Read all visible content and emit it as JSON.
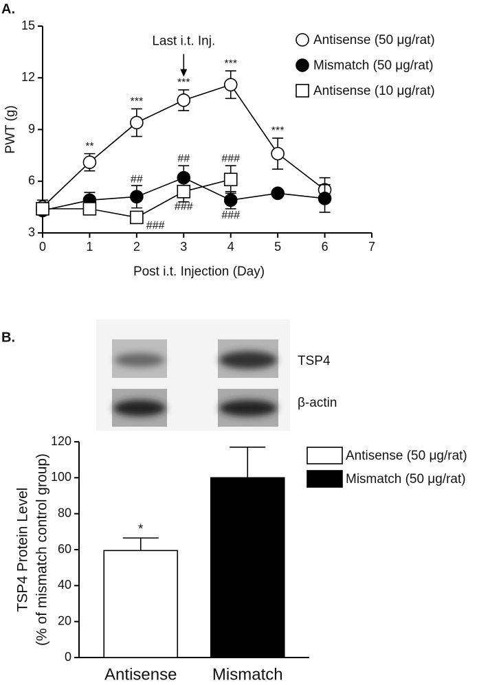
{
  "chart_data": [
    {
      "type": "line",
      "panel_label": "A.",
      "xlabel": "Post i.t. Injection (Day)",
      "ylabel": "PWT (g)",
      "x": [
        0,
        1,
        2,
        3,
        4,
        5,
        6
      ],
      "xlim": [
        0,
        7
      ],
      "xticks": [
        0,
        1,
        2,
        3,
        4,
        5,
        6,
        7
      ],
      "ylim": [
        3,
        15
      ],
      "yticks": [
        3,
        6,
        9,
        12,
        15
      ],
      "legend": "upper right",
      "series": [
        {
          "name": "Antisense (50 μg/rat)",
          "color": "#000000",
          "marker": "circle",
          "fill": "#ffffff",
          "values": [
            4.5,
            7.1,
            9.4,
            10.7,
            11.6,
            7.6,
            5.5
          ],
          "errors": [
            0.4,
            0.5,
            0.8,
            0.6,
            0.8,
            0.9,
            0.7
          ]
        },
        {
          "name": "Mismatch (50 μg/rat)",
          "color": "#000000",
          "marker": "circle",
          "fill": "#000000",
          "values": [
            4.3,
            4.9,
            5.1,
            6.2,
            4.9,
            5.3,
            5.0
          ],
          "errors": [
            0.2,
            0.45,
            0.65,
            0.7,
            0.5,
            0.1,
            0.8
          ]
        },
        {
          "name": "Antisense (10 μg/rat)",
          "color": "#000000",
          "marker": "square",
          "fill": "#ffffff",
          "values": [
            4.4,
            4.4,
            3.9,
            5.4,
            6.1,
            null,
            null
          ],
          "errors": [
            0.3,
            0.2,
            0.2,
            0.6,
            0.8,
            null,
            null
          ]
        }
      ],
      "annotations": [
        {
          "text": "Last i.t. Inj.",
          "x": 3,
          "y": 14.1,
          "arrow": true
        },
        {
          "text": "**",
          "x": 1,
          "y": 8.0
        },
        {
          "text": "***",
          "x": 2,
          "y": 10.6
        },
        {
          "text": "***",
          "x": 3,
          "y": 11.7
        },
        {
          "text": "***",
          "x": 4,
          "y": 12.8
        },
        {
          "text": "***",
          "x": 5,
          "y": 8.9
        },
        {
          "text": "##",
          "x": 2,
          "y": 6.1
        },
        {
          "text": "##",
          "x": 3,
          "y": 7.3
        },
        {
          "text": "###",
          "x": 4,
          "y": 7.3
        },
        {
          "text": "###",
          "x": 3,
          "y": 4.5
        },
        {
          "text": "###",
          "x": 4,
          "y": 4.0
        },
        {
          "text": "###",
          "x": 2.4,
          "y": 3.4
        }
      ]
    },
    {
      "type": "bar",
      "panel_label": "B.",
      "blot_labels": [
        "TSP4",
        "β-actin"
      ],
      "ylabel": [
        "TSP4 Protein Level",
        "(% of mismatch control group)"
      ],
      "categories": [
        "Antisense",
        "Mismatch"
      ],
      "values": [
        59.5,
        100
      ],
      "errors": [
        7,
        17
      ],
      "colors": [
        "#ffffff",
        "#000000"
      ],
      "legend": [
        "Antisense (50 μg/rat)",
        "Mismatch (50 μg/rat)"
      ],
      "ylim": [
        0,
        120
      ],
      "yticks": [
        0,
        20,
        40,
        60,
        80,
        100,
        120
      ],
      "annotations": [
        {
          "text": "*",
          "x": 0,
          "y": 71
        }
      ]
    }
  ]
}
